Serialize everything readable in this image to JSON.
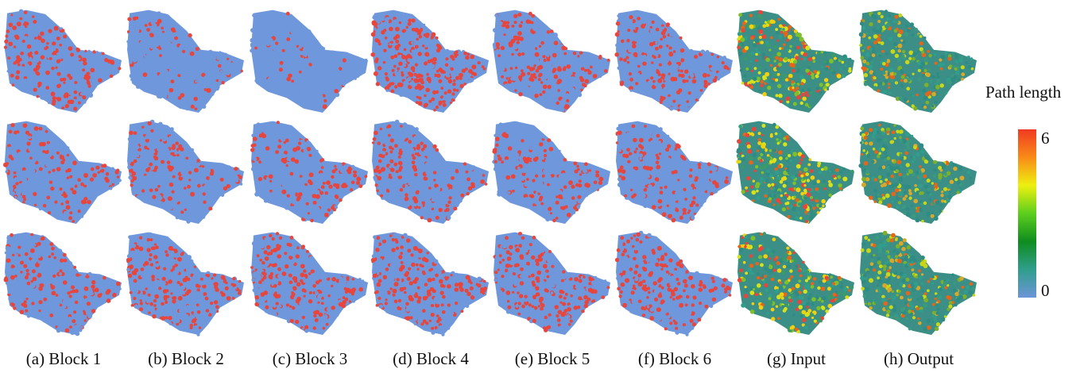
{
  "figure": {
    "panels": [
      {
        "caption": "(a) Block 1",
        "mode": "binary",
        "redFraction": [
          0.55,
          0.45,
          0.45
        ]
      },
      {
        "caption": "(b) Block 2",
        "mode": "binary",
        "redFraction": [
          0.22,
          0.35,
          0.55
        ]
      },
      {
        "caption": "(c) Block 3",
        "mode": "binary",
        "redFraction": [
          0.08,
          0.38,
          0.55
        ]
      },
      {
        "caption": "(d) Block 4",
        "mode": "binary",
        "redFraction": [
          0.62,
          0.42,
          0.58
        ]
      },
      {
        "caption": "(e) Block 5",
        "mode": "binary",
        "redFraction": [
          0.48,
          0.38,
          0.55
        ]
      },
      {
        "caption": "(f) Block 6",
        "mode": "binary",
        "redFraction": [
          0.42,
          0.36,
          0.55
        ]
      },
      {
        "caption": "(g) Input",
        "mode": "heat"
      },
      {
        "caption": "(h) Output",
        "mode": "heat"
      }
    ],
    "colors": {
      "red": "#e8453c",
      "blue": "#6f97dc"
    },
    "colorbar": {
      "title": "Path length",
      "max_label": "6",
      "min_label": "0",
      "stops": [
        "#f03a22",
        "#f98b18",
        "#eef010",
        "#5ccf1d",
        "#0f8c1f",
        "#2f9e8c",
        "#6d95d9"
      ]
    }
  }
}
